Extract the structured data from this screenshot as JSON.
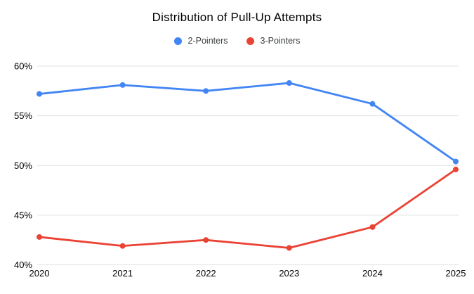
{
  "chart_title": "Distribution of Pull-Up Attempts",
  "chart_data": {
    "type": "line",
    "title": "Distribution of Pull-Up Attempts",
    "categories": [
      "2020",
      "2021",
      "2022",
      "2023",
      "2024",
      "2025"
    ],
    "series": [
      {
        "name": "2-Pointers",
        "color": "#4285f4",
        "values": [
          57.2,
          58.1,
          57.5,
          58.3,
          56.2,
          50.4
        ]
      },
      {
        "name": "3-Pointers",
        "color": "#ea4335",
        "values": [
          42.8,
          41.9,
          42.5,
          41.7,
          43.8,
          49.6
        ]
      }
    ],
    "xlabel": "",
    "ylabel": "",
    "ylim": [
      40,
      60
    ],
    "y_ticks": [
      {
        "value": 40,
        "label": "40%"
      },
      {
        "value": 45,
        "label": "45%"
      },
      {
        "value": 50,
        "label": "50%"
      },
      {
        "value": 55,
        "label": "55%"
      },
      {
        "value": 60,
        "label": "60%"
      }
    ],
    "grid": true,
    "legend_position": "top",
    "point_radius": 4,
    "line_width": 2.8
  },
  "colors": {
    "background": "#ffffff",
    "gridline": "#e2e2e2",
    "axis_text": "#000000",
    "title_text": "#000000",
    "legend_text": "#3c4043"
  }
}
